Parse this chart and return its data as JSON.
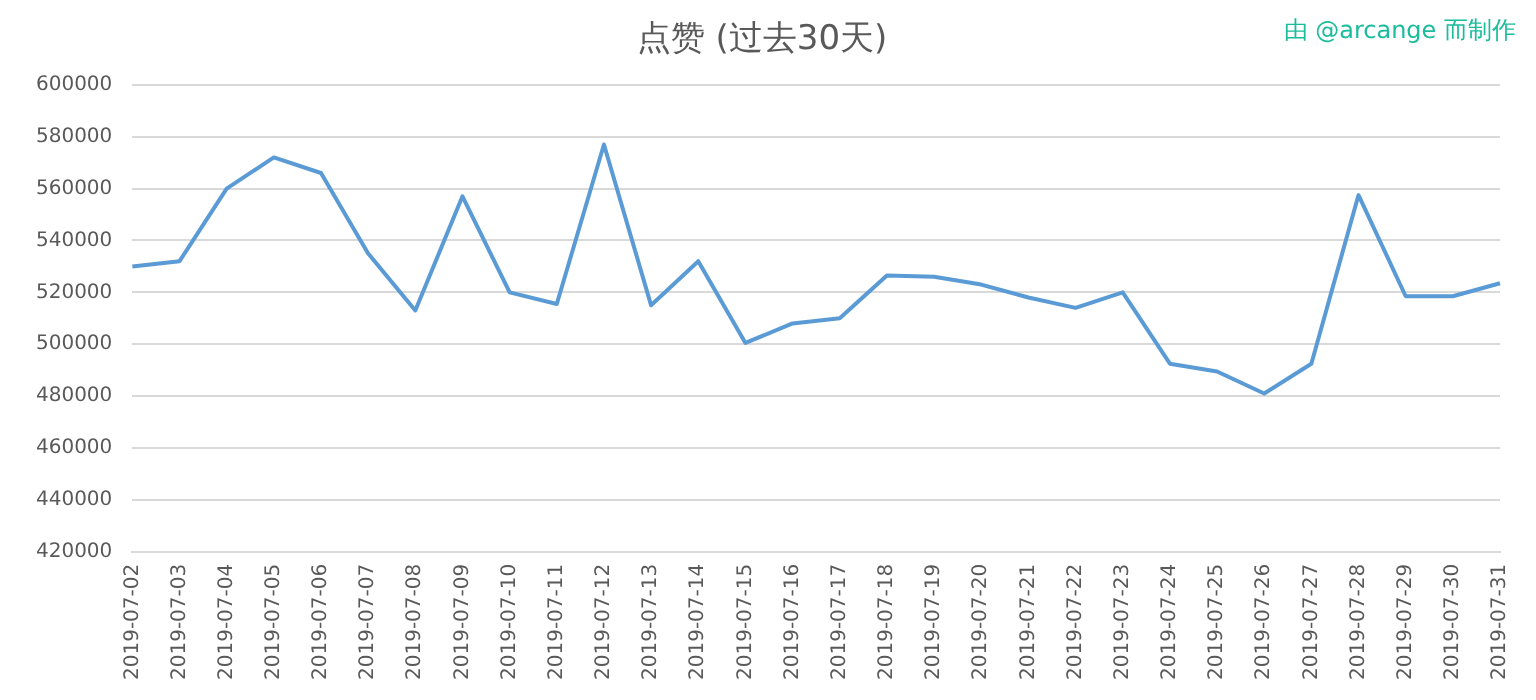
{
  "chart_data": {
    "type": "line",
    "title": "点赞 (过去30天)",
    "annotations": [
      "由 @arcange 而制作"
    ],
    "categories": [
      "2019-07-02",
      "2019-07-03",
      "2019-07-04",
      "2019-07-05",
      "2019-07-06",
      "2019-07-07",
      "2019-07-08",
      "2019-07-09",
      "2019-07-10",
      "2019-07-11",
      "2019-07-12",
      "2019-07-13",
      "2019-07-14",
      "2019-07-15",
      "2019-07-16",
      "2019-07-17",
      "2019-07-18",
      "2019-07-19",
      "2019-07-20",
      "2019-07-21",
      "2019-07-22",
      "2019-07-23",
      "2019-07-24",
      "2019-07-25",
      "2019-07-26",
      "2019-07-27",
      "2019-07-28",
      "2019-07-29",
      "2019-07-30",
      "2019-07-31"
    ],
    "series": [
      {
        "color": "#5b9bd5",
        "values": [
          530000,
          532000,
          560000,
          572000,
          566000,
          535000,
          513000,
          557000,
          520000,
          515500,
          577000,
          515000,
          532000,
          500500,
          508000,
          510000,
          526500,
          526000,
          523000,
          518000,
          514000,
          520000,
          492500,
          489500,
          481000,
          492500,
          557500,
          518500,
          518500,
          523500
        ]
      }
    ],
    "ylim": [
      420000,
      600000
    ],
    "yticks": [
      420000,
      440000,
      460000,
      480000,
      500000,
      520000,
      540000,
      560000,
      580000,
      600000
    ],
    "grid": "y",
    "legend": false,
    "marker": "none",
    "line_style": "solid"
  }
}
